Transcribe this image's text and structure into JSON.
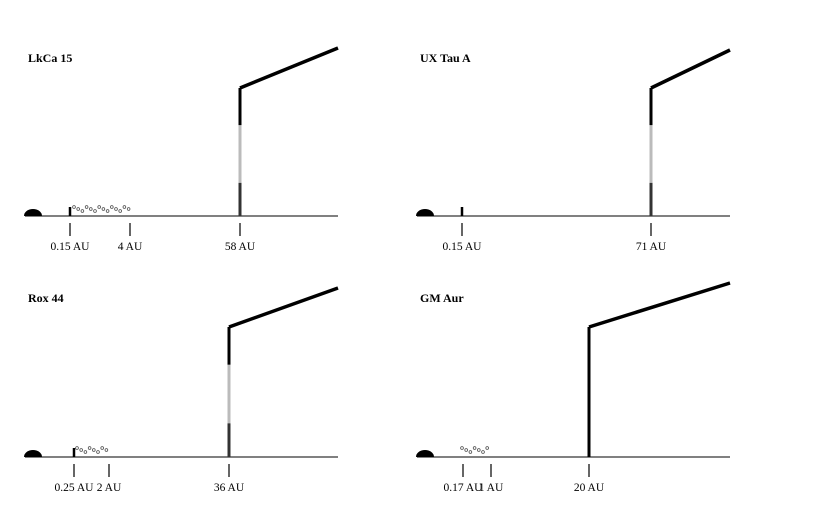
{
  "panels": [
    {
      "title": "LkCa 15",
      "labels": [
        "0.15 AU",
        "4 AU",
        "58 AU"
      ]
    },
    {
      "title": "UX Tau A",
      "labels": [
        "0.15 AU",
        "71 AU"
      ]
    },
    {
      "title": "Rox 44",
      "labels": [
        "0.25 AU",
        "2 AU",
        "36 AU"
      ]
    },
    {
      "title": "GM Aur",
      "labels": [
        "0.17 AU",
        "1 AU",
        "20 AU"
      ]
    }
  ]
}
